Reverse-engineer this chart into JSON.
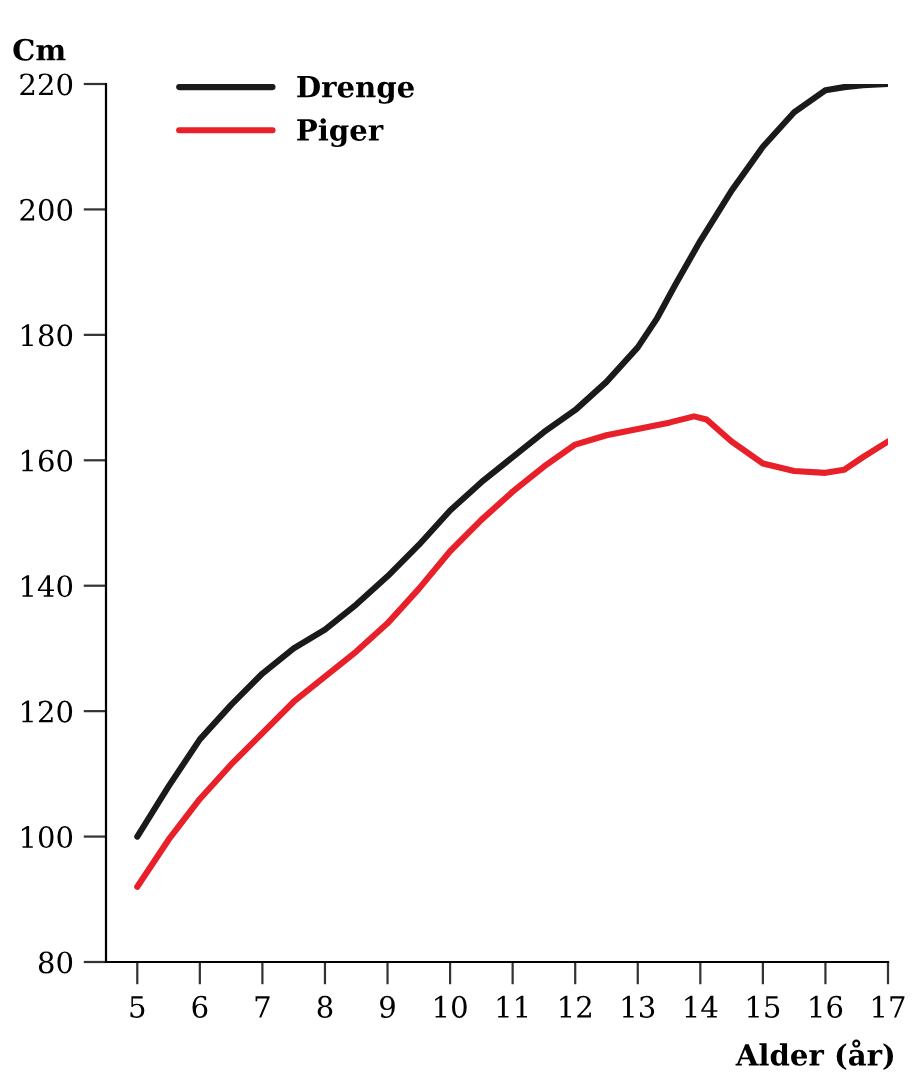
{
  "chart_data": {
    "type": "line",
    "ylabel": "Cm",
    "xlabel": "Alder (år)",
    "xlim": [
      4.5,
      17
    ],
    "xticks": [
      5,
      6,
      7,
      8,
      9,
      10,
      11,
      12,
      13,
      14,
      15,
      16,
      17
    ],
    "ylim": [
      80,
      220
    ],
    "yticks": [
      80,
      100,
      120,
      140,
      160,
      180,
      200,
      220
    ],
    "grid": false,
    "legend": "top left",
    "marker": "none",
    "line_style": "solid",
    "series": [
      {
        "name": "Drenge",
        "color": "#1a1a1a",
        "x": [
          5,
          5.5,
          6,
          6.5,
          7,
          7.5,
          8,
          8.5,
          9,
          9.5,
          10,
          10.5,
          11,
          11.5,
          12,
          12.5,
          13,
          13.3,
          13.6,
          14,
          14.5,
          15,
          15.5,
          16,
          16.3,
          16.6,
          17
        ],
        "values": [
          100,
          108,
          115.5,
          121,
          126,
          130,
          133,
          137,
          141.5,
          146.5,
          152,
          156.5,
          160.5,
          164.5,
          168,
          172.5,
          178,
          182.5,
          188,
          195,
          203,
          210,
          215.5,
          219,
          219.5,
          219.8,
          220
        ]
      },
      {
        "name": "Piger",
        "color": "#e8202a",
        "x": [
          5,
          5.5,
          6,
          6.5,
          7,
          7.5,
          8,
          8.5,
          9,
          9.5,
          10,
          10.5,
          11,
          11.5,
          12,
          12.5,
          13,
          13.5,
          13.9,
          14.1,
          14.5,
          15,
          15.5,
          16,
          16.3,
          16.6,
          17
        ],
        "values": [
          92,
          99.5,
          106,
          111.5,
          116.5,
          121.5,
          125.5,
          129.5,
          134,
          139.5,
          145.5,
          150.5,
          155,
          159,
          162.5,
          164,
          165,
          166,
          167,
          166.5,
          163,
          159.5,
          158.3,
          158,
          158.5,
          160.5,
          163
        ]
      }
    ]
  }
}
